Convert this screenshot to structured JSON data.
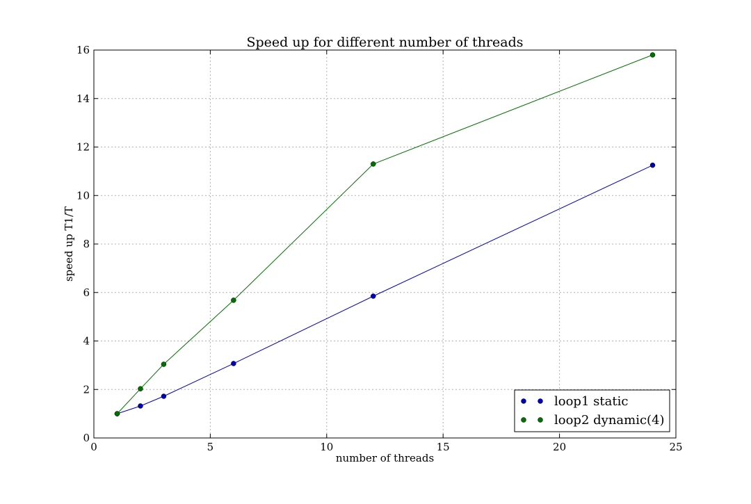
{
  "chart_data": {
    "type": "line",
    "title": "Speed up for different number of threads",
    "xlabel": "number of threads",
    "ylabel": "speed up T1/T",
    "xlim": [
      0,
      25
    ],
    "ylim": [
      0,
      16
    ],
    "xticks": [
      0,
      5,
      10,
      15,
      20,
      25
    ],
    "yticks": [
      0,
      2,
      4,
      6,
      8,
      10,
      12,
      14,
      16
    ],
    "grid": true,
    "legend_position": "bottom-right",
    "series": [
      {
        "name": "loop1 static",
        "color": "#0000bf",
        "x": [
          1,
          2,
          3,
          6,
          12,
          24
        ],
        "y": [
          1.0,
          1.32,
          1.72,
          3.07,
          5.85,
          11.25
        ]
      },
      {
        "name": "loop2 dynamic(4)",
        "color": "#007200",
        "x": [
          1,
          2,
          3,
          6,
          12,
          24
        ],
        "y": [
          1.0,
          2.03,
          3.04,
          5.68,
          11.3,
          15.8
        ]
      }
    ]
  }
}
